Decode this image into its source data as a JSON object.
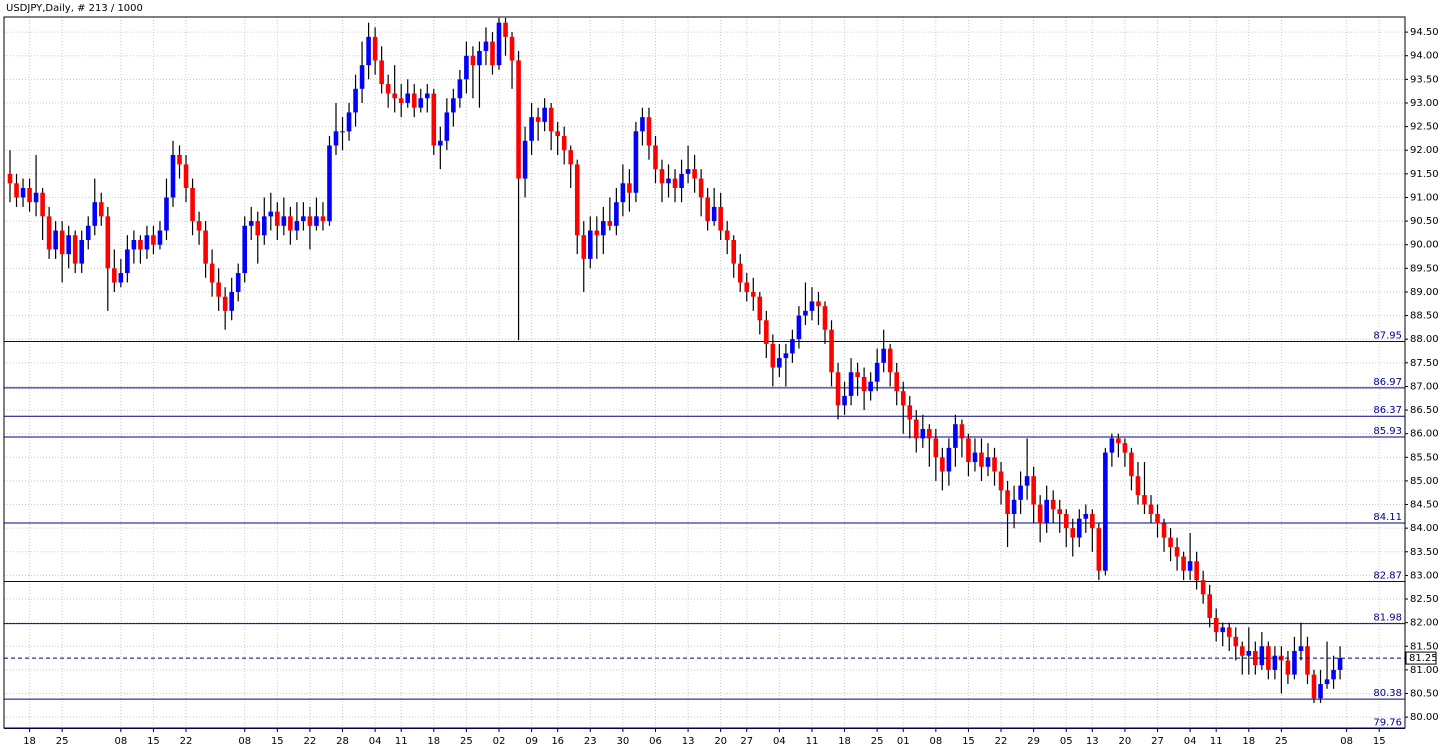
{
  "chart_data": {
    "type": "candlestick",
    "title": "USDJPY,Daily, # 213 / 1000",
    "up_color": "#0000ff",
    "down_color": "#ff0000",
    "wick_color": "#000000",
    "level_color": "#00008b",
    "grid": true,
    "ylim": [
      79.77,
      94.82
    ],
    "yticks": [
      {
        "value": 80,
        "label": "80.00"
      },
      {
        "value": 80.5,
        "label": "80.50"
      },
      {
        "value": 81,
        "label": "81.00"
      },
      {
        "value": 81.5,
        "label": "81.50"
      },
      {
        "value": 82,
        "label": "82.00"
      },
      {
        "value": 82.5,
        "label": "82.50"
      },
      {
        "value": 83,
        "label": "83.00"
      },
      {
        "value": 83.5,
        "label": "83.50"
      },
      {
        "value": 84,
        "label": "84.00"
      },
      {
        "value": 84.5,
        "label": "84.50"
      },
      {
        "value": 85,
        "label": "85.00"
      },
      {
        "value": 85.5,
        "label": "85.50"
      },
      {
        "value": 86,
        "label": "86.00"
      },
      {
        "value": 86.5,
        "label": "86.50"
      },
      {
        "value": 87,
        "label": "87.00"
      },
      {
        "value": 87.5,
        "label": "87.50"
      },
      {
        "value": 88,
        "label": "88.00"
      },
      {
        "value": 88.5,
        "label": "88.50"
      },
      {
        "value": 89,
        "label": "89.00"
      },
      {
        "value": 89.5,
        "label": "89.50"
      },
      {
        "value": 90,
        "label": "90.00"
      },
      {
        "value": 90.5,
        "label": "90.50"
      },
      {
        "value": 91,
        "label": "91.00"
      },
      {
        "value": 91.5,
        "label": "91.50"
      },
      {
        "value": 92,
        "label": "92.00"
      },
      {
        "value": 92.5,
        "label": "92.50"
      },
      {
        "value": 93,
        "label": "93.00"
      },
      {
        "value": 93.5,
        "label": "93.50"
      },
      {
        "value": 94,
        "label": "94.00"
      },
      {
        "value": 94.5,
        "label": "94.50"
      }
    ],
    "levels": [
      87.95,
      86.97,
      86.37,
      85.93,
      84.11,
      82.87,
      81.98,
      80.38,
      79.76
    ],
    "current_price": 81.25,
    "categories": [
      null,
      null,
      null,
      "18",
      null,
      null,
      null,
      null,
      "25",
      null,
      null,
      null,
      null,
      null,
      null,
      null,
      null,
      "08",
      null,
      null,
      null,
      null,
      "15",
      null,
      null,
      null,
      null,
      "22",
      null,
      null,
      null,
      null,
      null,
      null,
      null,
      null,
      "08",
      null,
      null,
      null,
      null,
      "15",
      null,
      null,
      null,
      null,
      "22",
      null,
      null,
      null,
      null,
      "28",
      null,
      null,
      null,
      null,
      "04",
      null,
      null,
      null,
      "11",
      null,
      null,
      null,
      null,
      "18",
      null,
      null,
      null,
      null,
      "25",
      null,
      null,
      null,
      null,
      "02",
      null,
      null,
      null,
      null,
      "09",
      null,
      null,
      null,
      "16",
      null,
      null,
      null,
      null,
      "23",
      null,
      null,
      null,
      null,
      "30",
      null,
      null,
      null,
      null,
      "06",
      null,
      null,
      null,
      null,
      "13",
      null,
      null,
      null,
      null,
      "20",
      null,
      null,
      null,
      "27",
      null,
      null,
      null,
      null,
      "04",
      null,
      null,
      null,
      null,
      "11",
      null,
      null,
      null,
      null,
      "18",
      null,
      null,
      null,
      null,
      "25",
      null,
      null,
      null,
      "01",
      null,
      null,
      null,
      null,
      "08",
      null,
      null,
      null,
      null,
      "15",
      null,
      null,
      null,
      null,
      "22",
      null,
      null,
      null,
      null,
      "29",
      null,
      null,
      null,
      null,
      "05",
      null,
      null,
      null,
      "13",
      null,
      null,
      null,
      null,
      "20",
      null,
      null,
      null,
      null,
      "27",
      null,
      null,
      null,
      null,
      "04",
      null,
      null,
      null,
      "11",
      null,
      null,
      null,
      null,
      "18",
      null,
      null,
      null,
      null,
      "25",
      null,
      null,
      null,
      null,
      null,
      null,
      null,
      null,
      null,
      "08",
      null,
      null,
      null,
      null,
      "15"
    ],
    "ohlc": [
      [
        91.5,
        92.0,
        90.9,
        91.3
      ],
      [
        91.3,
        91.5,
        90.8,
        91.0
      ],
      [
        91.0,
        91.4,
        90.8,
        91.2
      ],
      [
        91.2,
        91.4,
        90.7,
        90.9
      ],
      [
        90.9,
        91.9,
        90.6,
        91.1
      ],
      [
        91.1,
        91.2,
        90.1,
        90.6
      ],
      [
        90.6,
        90.8,
        89.7,
        89.9
      ],
      [
        89.9,
        90.5,
        89.7,
        90.3
      ],
      [
        90.3,
        90.5,
        89.2,
        89.8
      ],
      [
        89.8,
        90.4,
        89.5,
        90.2
      ],
      [
        90.2,
        90.3,
        89.4,
        89.6
      ],
      [
        89.6,
        90.3,
        89.4,
        90.1
      ],
      [
        90.1,
        90.6,
        89.9,
        90.4
      ],
      [
        90.4,
        91.4,
        90.2,
        90.9
      ],
      [
        90.9,
        91.1,
        90.4,
        90.6
      ],
      [
        90.6,
        90.8,
        88.6,
        89.5
      ],
      [
        89.5,
        89.9,
        89.0,
        89.2
      ],
      [
        89.2,
        89.7,
        89.1,
        89.4
      ],
      [
        89.4,
        90.2,
        89.2,
        89.9
      ],
      [
        89.9,
        90.3,
        89.6,
        90.1
      ],
      [
        90.1,
        90.2,
        89.6,
        89.9
      ],
      [
        89.9,
        90.4,
        89.7,
        90.2
      ],
      [
        90.2,
        90.4,
        89.8,
        90.0
      ],
      [
        90.0,
        90.5,
        89.9,
        90.3
      ],
      [
        90.3,
        91.4,
        90.1,
        91.0
      ],
      [
        91.0,
        92.2,
        90.8,
        91.9
      ],
      [
        91.9,
        92.1,
        91.4,
        91.7
      ],
      [
        91.7,
        91.9,
        90.9,
        91.2
      ],
      [
        91.2,
        91.4,
        90.2,
        90.5
      ],
      [
        90.5,
        90.7,
        90.0,
        90.3
      ],
      [
        90.3,
        90.5,
        89.3,
        89.6
      ],
      [
        89.6,
        89.9,
        88.9,
        89.2
      ],
      [
        89.2,
        89.5,
        88.6,
        88.9
      ],
      [
        88.9,
        89.1,
        88.2,
        88.6
      ],
      [
        88.6,
        89.3,
        88.4,
        89.0
      ],
      [
        89.0,
        89.6,
        88.8,
        89.4
      ],
      [
        89.4,
        90.6,
        89.2,
        90.4
      ],
      [
        90.4,
        90.8,
        90.1,
        90.5
      ],
      [
        90.5,
        90.7,
        89.6,
        90.2
      ],
      [
        90.2,
        91.0,
        90.0,
        90.6
      ],
      [
        90.6,
        91.1,
        90.3,
        90.7
      ],
      [
        90.7,
        90.9,
        90.1,
        90.4
      ],
      [
        90.4,
        91.0,
        90.2,
        90.6
      ],
      [
        90.6,
        90.8,
        90.0,
        90.3
      ],
      [
        90.3,
        90.9,
        90.1,
        90.5
      ],
      [
        90.5,
        90.9,
        90.3,
        90.6
      ],
      [
        90.6,
        90.8,
        89.9,
        90.4
      ],
      [
        90.4,
        91.0,
        90.3,
        90.6
      ],
      [
        90.6,
        90.9,
        90.3,
        90.5
      ],
      [
        90.5,
        92.3,
        90.4,
        92.1
      ],
      [
        92.1,
        93.0,
        91.9,
        92.4
      ],
      [
        92.4,
        92.7,
        92.0,
        92.4
      ],
      [
        92.4,
        93.0,
        92.2,
        92.8
      ],
      [
        92.8,
        93.6,
        92.5,
        93.3
      ],
      [
        93.3,
        94.3,
        93.0,
        93.8
      ],
      [
        93.8,
        94.7,
        93.5,
        94.4
      ],
      [
        94.4,
        94.6,
        93.6,
        93.9
      ],
      [
        93.9,
        94.2,
        93.2,
        93.4
      ],
      [
        93.4,
        93.6,
        92.9,
        93.2
      ],
      [
        93.2,
        93.8,
        92.8,
        93.1
      ],
      [
        93.1,
        93.4,
        92.7,
        93.0
      ],
      [
        93.0,
        93.5,
        92.9,
        93.2
      ],
      [
        93.2,
        93.4,
        92.7,
        92.9
      ],
      [
        92.9,
        93.3,
        92.8,
        93.1
      ],
      [
        93.1,
        93.4,
        92.8,
        93.2
      ],
      [
        93.2,
        93.3,
        91.9,
        92.1
      ],
      [
        92.1,
        92.5,
        91.6,
        92.2
      ],
      [
        92.2,
        93.1,
        92.0,
        92.8
      ],
      [
        92.8,
        93.3,
        92.5,
        93.1
      ],
      [
        93.1,
        93.7,
        92.9,
        93.5
      ],
      [
        93.5,
        94.3,
        93.2,
        94.0
      ],
      [
        94.0,
        94.2,
        93.1,
        93.8
      ],
      [
        93.8,
        94.3,
        92.9,
        94.1
      ],
      [
        94.1,
        94.6,
        93.8,
        94.3
      ],
      [
        94.3,
        94.5,
        93.6,
        93.8
      ],
      [
        93.8,
        94.8,
        93.7,
        94.7
      ],
      [
        94.7,
        94.8,
        94.0,
        94.4
      ],
      [
        94.4,
        94.5,
        93.3,
        93.9
      ],
      [
        93.9,
        94.1,
        87.98,
        91.4
      ],
      [
        91.4,
        92.5,
        91.0,
        92.2
      ],
      [
        92.2,
        93.0,
        91.9,
        92.7
      ],
      [
        92.7,
        92.9,
        92.2,
        92.6
      ],
      [
        92.6,
        93.1,
        92.4,
        92.9
      ],
      [
        92.9,
        93.0,
        92.0,
        92.4
      ],
      [
        92.4,
        92.6,
        91.9,
        92.3
      ],
      [
        92.3,
        92.5,
        91.7,
        92.0
      ],
      [
        92.0,
        92.1,
        91.2,
        91.7
      ],
      [
        91.7,
        91.8,
        89.8,
        90.2
      ],
      [
        90.2,
        90.5,
        89.0,
        89.7
      ],
      [
        89.7,
        90.6,
        89.5,
        90.3
      ],
      [
        90.3,
        90.6,
        89.7,
        90.2
      ],
      [
        90.2,
        90.8,
        89.8,
        90.5
      ],
      [
        90.5,
        91.0,
        90.3,
        90.4
      ],
      [
        90.4,
        91.2,
        90.2,
        90.9
      ],
      [
        90.9,
        91.7,
        90.6,
        91.3
      ],
      [
        91.3,
        91.6,
        90.7,
        91.1
      ],
      [
        91.1,
        92.6,
        90.9,
        92.4
      ],
      [
        92.4,
        92.9,
        92.1,
        92.7
      ],
      [
        92.7,
        92.9,
        91.8,
        92.1
      ],
      [
        92.1,
        92.3,
        91.3,
        91.6
      ],
      [
        91.6,
        91.8,
        90.9,
        91.3
      ],
      [
        91.3,
        91.7,
        91.0,
        91.4
      ],
      [
        91.4,
        91.6,
        90.9,
        91.2
      ],
      [
        91.2,
        91.8,
        90.9,
        91.5
      ],
      [
        91.5,
        92.1,
        91.3,
        91.6
      ],
      [
        91.6,
        91.9,
        91.1,
        91.4
      ],
      [
        91.4,
        91.6,
        90.6,
        91.0
      ],
      [
        91.0,
        91.2,
        90.3,
        90.5
      ],
      [
        90.5,
        91.2,
        90.4,
        90.8
      ],
      [
        90.8,
        91.1,
        90.1,
        90.3
      ],
      [
        90.3,
        90.5,
        89.8,
        90.1
      ],
      [
        90.1,
        90.2,
        89.3,
        89.6
      ],
      [
        89.6,
        89.8,
        89.0,
        89.2
      ],
      [
        89.2,
        89.4,
        88.8,
        89.0
      ],
      [
        89.0,
        89.3,
        88.6,
        88.9
      ],
      [
        88.9,
        89.0,
        88.1,
        88.4
      ],
      [
        88.4,
        88.6,
        87.6,
        87.9
      ],
      [
        87.9,
        88.1,
        87.0,
        87.4
      ],
      [
        87.4,
        87.9,
        87.2,
        87.6
      ],
      [
        87.6,
        87.9,
        87.0,
        87.7
      ],
      [
        87.7,
        88.2,
        87.5,
        88.0
      ],
      [
        88.0,
        88.7,
        87.8,
        88.5
      ],
      [
        88.5,
        89.2,
        88.3,
        88.6
      ],
      [
        88.6,
        89.1,
        88.4,
        88.8
      ],
      [
        88.8,
        89.0,
        88.3,
        88.7
      ],
      [
        88.7,
        88.8,
        87.9,
        88.2
      ],
      [
        88.2,
        88.4,
        87.0,
        87.3
      ],
      [
        87.3,
        87.5,
        86.3,
        86.6
      ],
      [
        86.6,
        87.1,
        86.4,
        86.8
      ],
      [
        86.8,
        87.6,
        86.6,
        87.3
      ],
      [
        87.3,
        87.5,
        86.8,
        87.2
      ],
      [
        87.2,
        87.4,
        86.5,
        86.9
      ],
      [
        86.9,
        87.3,
        86.7,
        87.1
      ],
      [
        87.1,
        87.8,
        86.9,
        87.5
      ],
      [
        87.5,
        88.2,
        87.3,
        87.8
      ],
      [
        87.8,
        87.9,
        87.0,
        87.3
      ],
      [
        87.3,
        87.5,
        86.6,
        86.9
      ],
      [
        86.9,
        87.1,
        86.0,
        86.6
      ],
      [
        86.6,
        86.8,
        85.9,
        86.3
      ],
      [
        86.3,
        86.5,
        85.6,
        85.9
      ],
      [
        85.9,
        86.4,
        85.7,
        86.1
      ],
      [
        86.1,
        86.2,
        85.3,
        85.9
      ],
      [
        85.9,
        86.1,
        85.0,
        85.5
      ],
      [
        85.5,
        85.7,
        84.8,
        85.2
      ],
      [
        85.2,
        85.9,
        84.9,
        85.7
      ],
      [
        85.7,
        86.4,
        85.3,
        86.2
      ],
      [
        86.2,
        86.3,
        85.5,
        85.9
      ],
      [
        85.9,
        86.0,
        85.1,
        85.4
      ],
      [
        85.4,
        85.9,
        85.2,
        85.6
      ],
      [
        85.6,
        85.9,
        85.0,
        85.3
      ],
      [
        85.3,
        85.8,
        85.1,
        85.5
      ],
      [
        85.5,
        85.7,
        84.9,
        85.2
      ],
      [
        85.2,
        85.4,
        84.5,
        84.8
      ],
      [
        84.8,
        85.0,
        83.6,
        84.3
      ],
      [
        84.3,
        84.9,
        84.0,
        84.6
      ],
      [
        84.6,
        85.2,
        84.3,
        84.9
      ],
      [
        84.9,
        85.9,
        84.6,
        85.1
      ],
      [
        85.1,
        85.3,
        84.1,
        84.5
      ],
      [
        84.5,
        84.7,
        83.7,
        84.1
      ],
      [
        84.1,
        84.9,
        83.9,
        84.6
      ],
      [
        84.6,
        84.8,
        84.1,
        84.4
      ],
      [
        84.4,
        84.6,
        83.9,
        84.3
      ],
      [
        84.3,
        84.4,
        83.6,
        84.0
      ],
      [
        84.0,
        84.2,
        83.4,
        83.8
      ],
      [
        83.8,
        84.4,
        83.6,
        84.2
      ],
      [
        84.2,
        84.5,
        83.9,
        84.3
      ],
      [
        84.3,
        84.4,
        83.5,
        84.0
      ],
      [
        84.0,
        84.1,
        82.9,
        83.1
      ],
      [
        83.1,
        85.7,
        83.0,
        85.6
      ],
      [
        85.6,
        86.0,
        85.3,
        85.9
      ],
      [
        85.9,
        86.0,
        85.5,
        85.8
      ],
      [
        85.8,
        85.9,
        85.3,
        85.6
      ],
      [
        85.6,
        85.7,
        84.8,
        85.1
      ],
      [
        85.1,
        85.4,
        84.5,
        84.7
      ],
      [
        84.7,
        85.4,
        84.3,
        84.5
      ],
      [
        84.5,
        84.7,
        84.1,
        84.3
      ],
      [
        84.3,
        84.5,
        83.8,
        84.1
      ],
      [
        84.1,
        84.2,
        83.5,
        83.8
      ],
      [
        83.8,
        84.0,
        83.3,
        83.6
      ],
      [
        83.6,
        83.8,
        83.1,
        83.4
      ],
      [
        83.4,
        83.5,
        82.9,
        83.1
      ],
      [
        83.1,
        83.9,
        82.9,
        83.3
      ],
      [
        83.3,
        83.5,
        82.7,
        82.9
      ],
      [
        82.9,
        83.1,
        82.4,
        82.6
      ],
      [
        82.6,
        82.8,
        81.9,
        82.1
      ],
      [
        82.1,
        82.3,
        81.6,
        81.8
      ],
      [
        81.8,
        82.0,
        81.5,
        81.9
      ],
      [
        81.9,
        82.0,
        81.4,
        81.7
      ],
      [
        81.7,
        81.9,
        81.2,
        81.5
      ],
      [
        81.5,
        81.6,
        80.9,
        81.3
      ],
      [
        81.3,
        81.9,
        80.9,
        81.4
      ],
      [
        81.4,
        81.6,
        80.9,
        81.1
      ],
      [
        81.1,
        81.8,
        81.0,
        81.5
      ],
      [
        81.5,
        81.6,
        80.8,
        81.0
      ],
      [
        81.0,
        81.5,
        80.8,
        81.3
      ],
      [
        81.3,
        81.5,
        80.5,
        81.2
      ],
      [
        81.2,
        81.4,
        80.7,
        80.9
      ],
      [
        80.9,
        81.7,
        80.8,
        81.4
      ],
      [
        81.4,
        82.0,
        81.2,
        81.5
      ],
      [
        81.5,
        81.7,
        80.7,
        80.9
      ],
      [
        80.9,
        81.0,
        80.3,
        80.4
      ],
      [
        80.4,
        81.0,
        80.3,
        80.7
      ],
      [
        80.7,
        81.6,
        80.6,
        80.8
      ],
      [
        80.8,
        81.3,
        80.6,
        81.0
      ],
      [
        81.0,
        81.5,
        80.8,
        81.25
      ],
      null,
      null,
      null,
      null,
      null,
      null
    ]
  }
}
